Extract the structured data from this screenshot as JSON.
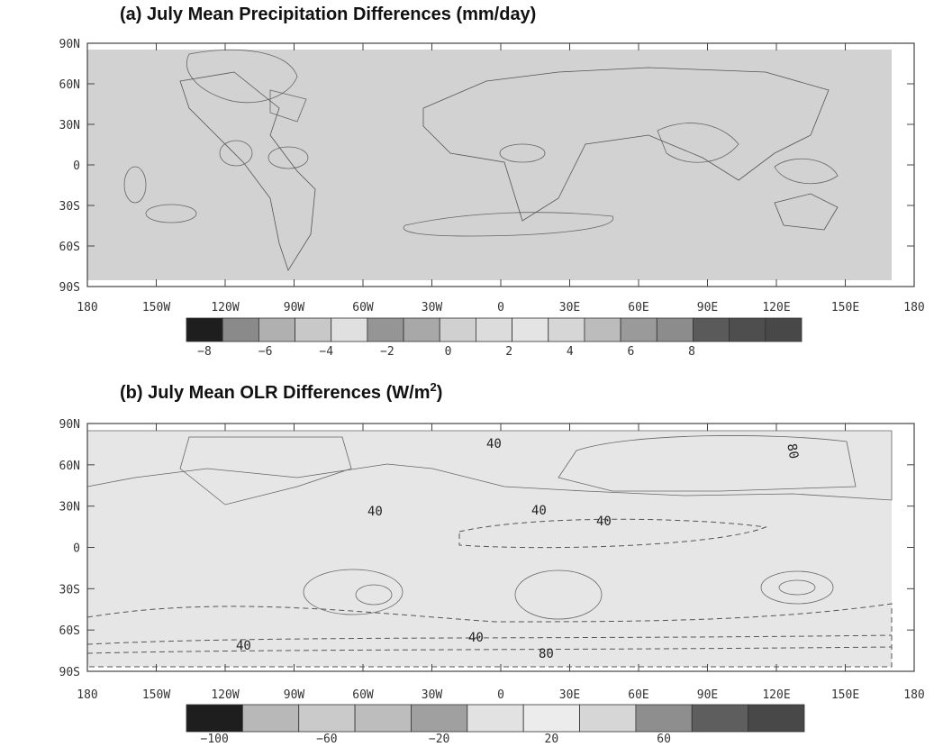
{
  "panels": [
    {
      "title": "(a) July Mean Precipitation Differences (mm/day)",
      "lat_labels": [
        "90N",
        "60N",
        "30N",
        "0",
        "30S",
        "60S",
        "90S"
      ],
      "lon_labels": [
        "180",
        "150W",
        "120W",
        "90W",
        "60W",
        "30W",
        "0",
        "30E",
        "60E",
        "90E",
        "120E",
        "150E",
        "180"
      ],
      "colorbar_colors": [
        "#1e1e1e",
        "#8a8a8a",
        "#b0b0b0",
        "#c8c8c8",
        "#e0e0e0",
        "#959595",
        "#a8a8a8",
        "#d0d0d0",
        "#dcdcdc",
        "#e4e4e4",
        "#d6d6d6",
        "#bcbcbc",
        "#9a9a9a",
        "#8c8c8c",
        "#5a5a5a",
        "#4e4e4e",
        "#484848"
      ],
      "colorbar_labels": [
        "−8",
        "−6",
        "−4",
        "−2",
        "0",
        "2",
        "4",
        "6",
        "8"
      ]
    },
    {
      "title": "(b) July Mean OLR Differences (W/m",
      "title_sup": "2",
      "title_end": ")",
      "lat_labels": [
        "90N",
        "60N",
        "30N",
        "0",
        "30S",
        "60S",
        "90S"
      ],
      "lon_labels": [
        "180",
        "150W",
        "120W",
        "90W",
        "60W",
        "30W",
        "0",
        "30E",
        "60E",
        "90E",
        "120E",
        "150E",
        "180"
      ],
      "colorbar_colors": [
        "#1e1e1e",
        "#b8b8b8",
        "#cacaca",
        "#bdbdbd",
        "#a0a0a0",
        "#e2e2e2",
        "#ececec",
        "#d6d6d6",
        "#8e8e8e",
        "#5e5e5e",
        "#484848"
      ],
      "colorbar_labels": [
        "−100",
        "−60",
        "−20",
        "20",
        "60"
      ],
      "contour_labels": [
        "40",
        "40",
        "40",
        "40",
        "80",
        "40",
        "40",
        "80"
      ]
    }
  ]
}
